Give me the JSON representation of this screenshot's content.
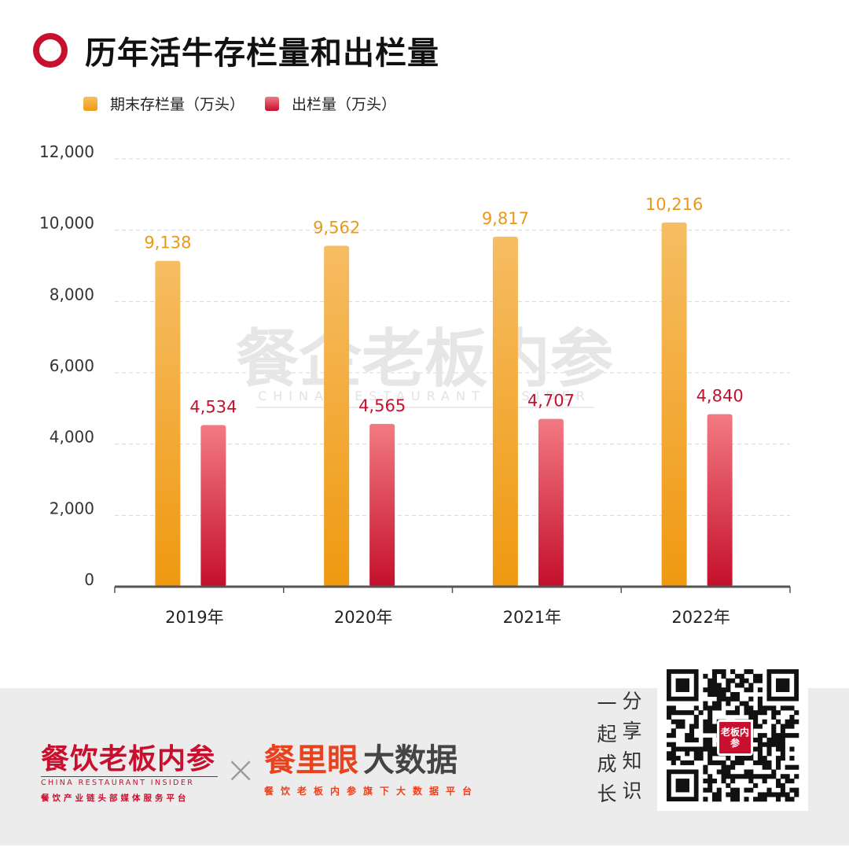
{
  "header": {
    "title": "历年活牛存栏量和出栏量"
  },
  "legend": {
    "stock_label": "期末存栏量（万头）",
    "out_label": "出栏量（万头）"
  },
  "colors": {
    "accent": "#c8102e",
    "stock_top": "#f6bd63",
    "stock_bottom": "#ef9910",
    "out_top": "#f27a82",
    "out_bottom": "#c50f2c",
    "stock_label": "#e8991a",
    "out_label": "#c8102e"
  },
  "chart_data": {
    "type": "bar",
    "categories": [
      "2019年",
      "2020年",
      "2021年",
      "2022年"
    ],
    "series": [
      {
        "name": "期末存栏量（万头）",
        "values": [
          9138,
          9562,
          9817,
          10216
        ],
        "labels": [
          "9,138",
          "9,562",
          "9,817",
          "10,216"
        ]
      },
      {
        "name": "出栏量（万头）",
        "values": [
          4534,
          4565,
          4707,
          4840
        ],
        "labels": [
          "4,534",
          "4,565",
          "4,707",
          "4,840"
        ]
      }
    ],
    "yticks": [
      "0",
      "2,000",
      "4,000",
      "6,000",
      "8,000",
      "10,000",
      "12,000"
    ],
    "ytick_values": [
      0,
      2000,
      4000,
      6000,
      8000,
      10000,
      12000
    ],
    "ylim": [
      0,
      12000
    ],
    "grid": true,
    "legend_position": "top-left"
  },
  "watermark": {
    "cn": "餐企老板内参",
    "en": "CHINA RESTAURANT INSIDER"
  },
  "footer": {
    "brand_left_cn": "餐饮老板内参",
    "brand_left_en": "CHINA RESTAURANT INSIDER",
    "brand_left_sub": "餐饮产业链头部媒体服务平台",
    "brand_x": "×",
    "brand_mid_red": "餐里眼",
    "brand_mid_dark": "大数据",
    "brand_mid_sub": "餐饮老板内参旗下大数据平台",
    "slogan_col1": [
      "一",
      "起",
      "成",
      "长"
    ],
    "slogan_col2": [
      "分",
      "享",
      "知",
      "识"
    ],
    "qr_logo": "老板内参"
  }
}
